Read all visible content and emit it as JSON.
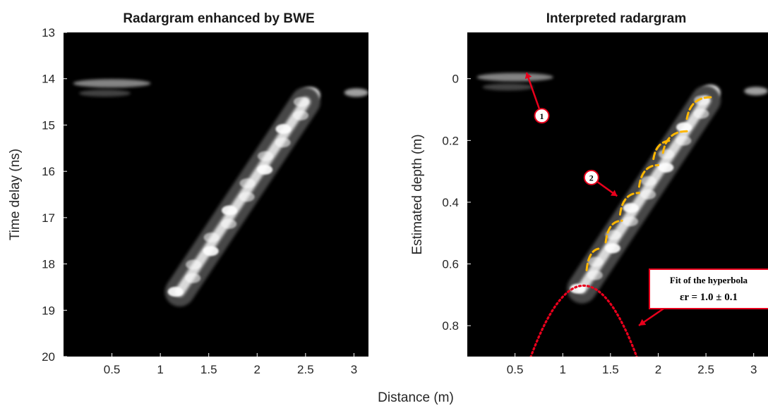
{
  "figure": {
    "shared_xlabel": "Distance (m)"
  },
  "chart_data": [
    {
      "type": "heatmap",
      "title": "Radargram enhanced by BWE",
      "xlabel": "",
      "ylabel": "Time delay (ns)",
      "xlim": [
        0,
        3.15
      ],
      "ylim": [
        20,
        13
      ],
      "y_reversed": true,
      "x_ticks": [
        0.5,
        1,
        1.5,
        2,
        2.5,
        3
      ],
      "x_tick_labels": [
        "0.5",
        "1",
        "1.5",
        "2",
        "2.5",
        "3"
      ],
      "y_ticks": [
        13,
        14,
        15,
        16,
        17,
        18,
        19,
        20
      ],
      "y_tick_labels": [
        "13",
        "14",
        "15",
        "16",
        "17",
        "18",
        "19",
        "20"
      ],
      "colormap": "gray",
      "background": "#000000",
      "reflections": [
        {
          "x": [
            0.1,
            0.9
          ],
          "y": [
            14.05,
            14.15
          ],
          "intensity": 0.5
        },
        {
          "x": [
            2.45,
            2.65
          ],
          "y": [
            14.3,
            14.4
          ],
          "intensity": 0.95
        },
        {
          "x": [
            2.9,
            3.15
          ],
          "y": [
            14.3,
            14.3
          ],
          "intensity": 0.8
        },
        {
          "x": [
            1.2,
            2.5
          ],
          "y": [
            18.6,
            14.5
          ],
          "intensity": 0.85
        }
      ]
    },
    {
      "type": "heatmap",
      "title": "Interpreted radargram",
      "xlabel": "",
      "ylabel": "Estimated depth (m)",
      "xlim": [
        0,
        3.15
      ],
      "ylim": [
        0.9,
        -0.15
      ],
      "y_reversed": true,
      "x_ticks": [
        0.5,
        1,
        1.5,
        2,
        2.5,
        3
      ],
      "x_tick_labels": [
        "0.5",
        "1",
        "1.5",
        "2",
        "2.5",
        "3"
      ],
      "y_ticks": [
        0,
        0.2,
        0.4,
        0.6,
        0.8
      ],
      "y_tick_labels": [
        "0",
        "0.2",
        "0.4",
        "0.6",
        "0.8"
      ],
      "colormap": "gray",
      "background": "#000000",
      "reflections": [
        {
          "x": [
            0.1,
            0.9
          ],
          "y": [
            -0.01,
            0.0
          ],
          "intensity": 0.5
        },
        {
          "x": [
            2.45,
            2.65
          ],
          "y": [
            0.04,
            0.05
          ],
          "intensity": 0.95
        },
        {
          "x": [
            2.9,
            3.15
          ],
          "y": [
            0.04,
            0.04
          ],
          "intensity": 0.8
        },
        {
          "x": [
            1.2,
            2.5
          ],
          "y": [
            0.68,
            0.07
          ],
          "intensity": 0.85
        }
      ],
      "annotations": {
        "hyperbola_segments": [
          {
            "x": [
              1.25,
              1.4
            ],
            "y": [
              0.62,
              0.55
            ],
            "color": "#ffb700"
          },
          {
            "x": [
              1.45,
              1.62
            ],
            "y": [
              0.53,
              0.46
            ],
            "color": "#ffb700"
          },
          {
            "x": [
              1.6,
              1.8
            ],
            "y": [
              0.44,
              0.37
            ],
            "color": "#ffb700"
          },
          {
            "x": [
              1.8,
              2.0
            ],
            "y": [
              0.35,
              0.28
            ],
            "color": "#ffb700"
          },
          {
            "x": [
              1.95,
              2.15
            ],
            "y": [
              0.26,
              0.2
            ],
            "color": "#ffb700"
          },
          {
            "x": [
              2.05,
              2.3
            ],
            "y": [
              0.24,
              0.17
            ],
            "color": "#ffb700"
          },
          {
            "x": [
              2.3,
              2.55
            ],
            "y": [
              0.13,
              0.06
            ],
            "color": "#ffb700"
          }
        ],
        "fit_hyperbola": {
          "apex_x": 1.22,
          "apex_y": 0.67,
          "x_range": [
            0.5,
            1.92
          ],
          "color": "#e8001c"
        },
        "markers": [
          {
            "label": "1",
            "x": 0.78,
            "y": 0.12,
            "arrow_to_x": 0.62,
            "arrow_to_y": -0.02
          },
          {
            "label": "2",
            "x": 1.3,
            "y": 0.32,
            "arrow_to_x": 1.57,
            "arrow_to_y": 0.38
          }
        ],
        "fit_box": {
          "line1": "Fit of the hyperbola",
          "line2": "εr = 1.0 ± 0.1",
          "edge_color": "#e8001c"
        },
        "arrow_color": "#e8001c"
      }
    }
  ]
}
